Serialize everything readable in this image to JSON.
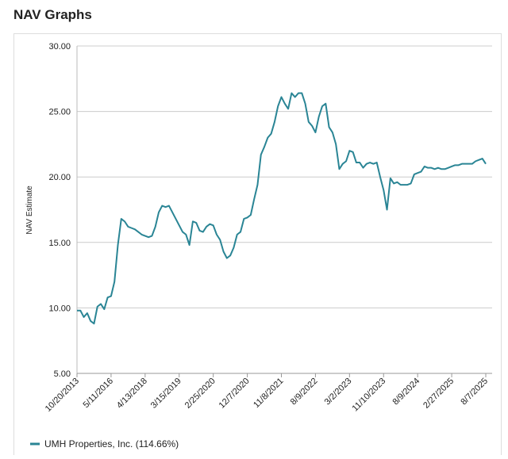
{
  "chart_data": {
    "type": "line",
    "title": "NAV Graphs",
    "ylabel": "NAV Estimate",
    "categories": [
      "10/20/2013",
      null,
      null,
      null,
      null,
      null,
      null,
      null,
      null,
      null,
      "5/11/2016",
      null,
      null,
      null,
      null,
      null,
      null,
      null,
      null,
      null,
      "4/13/2018",
      null,
      null,
      null,
      null,
      null,
      null,
      null,
      null,
      null,
      "3/15/2019",
      null,
      null,
      null,
      null,
      null,
      null,
      null,
      null,
      null,
      "2/25/2020",
      null,
      null,
      null,
      null,
      null,
      null,
      null,
      null,
      null,
      "12/7/2020",
      null,
      null,
      null,
      null,
      null,
      null,
      null,
      null,
      null,
      "11/8/2021",
      null,
      null,
      null,
      null,
      null,
      null,
      null,
      null,
      null,
      "8/9/2022",
      null,
      null,
      null,
      null,
      null,
      null,
      null,
      null,
      null,
      "3/2/2023",
      null,
      null,
      null,
      null,
      null,
      null,
      null,
      null,
      null,
      "11/10/2023",
      null,
      null,
      null,
      null,
      null,
      null,
      null,
      null,
      null,
      "8/9/2024",
      null,
      null,
      null,
      null,
      null,
      null,
      null,
      null,
      null,
      "2/27/2025",
      null,
      null,
      null,
      null,
      null,
      null,
      null,
      null,
      null,
      "8/7/2025"
    ],
    "series": [
      {
        "name": "UMH Properties, Inc. (114.66%)",
        "color": "#2a8595",
        "values": [
          9.8,
          9.8,
          9.3,
          9.6,
          9.0,
          8.8,
          10.1,
          10.3,
          9.9,
          10.8,
          10.9,
          12.0,
          14.8,
          16.8,
          16.6,
          16.2,
          16.1,
          16.0,
          15.8,
          15.6,
          15.5,
          15.4,
          15.5,
          16.2,
          17.3,
          17.8,
          17.7,
          17.8,
          17.3,
          16.8,
          16.3,
          15.8,
          15.6,
          14.8,
          16.6,
          16.5,
          15.9,
          15.8,
          16.2,
          16.4,
          16.3,
          15.6,
          15.2,
          14.3,
          13.8,
          14.0,
          14.6,
          15.6,
          15.8,
          16.8,
          16.9,
          17.1,
          18.3,
          19.4,
          21.7,
          22.3,
          23.0,
          23.3,
          24.2,
          25.4,
          26.1,
          25.6,
          25.2,
          26.4,
          26.1,
          26.4,
          26.4,
          25.6,
          24.2,
          23.9,
          23.4,
          24.6,
          25.4,
          25.6,
          23.8,
          23.4,
          22.5,
          20.6,
          21.0,
          21.2,
          22.0,
          21.9,
          21.1,
          21.1,
          20.7,
          21.0,
          21.1,
          21.0,
          21.1,
          20.0,
          19.0,
          17.5,
          19.9,
          19.5,
          19.6,
          19.4,
          19.4,
          19.4,
          19.5,
          20.2,
          20.3,
          20.4,
          20.8,
          20.7,
          20.7,
          20.6,
          20.7,
          20.6,
          20.6,
          20.7,
          20.8,
          20.9,
          20.9,
          21.0,
          21.0,
          21.0,
          21.0,
          21.2,
          21.3,
          21.4,
          21.0
        ]
      }
    ],
    "ylim": [
      5,
      30
    ],
    "yticks": [
      {
        "value": 5,
        "label": "5.00"
      },
      {
        "value": 10,
        "label": "10.00"
      },
      {
        "value": 15,
        "label": "15.00"
      },
      {
        "value": 20,
        "label": "20.00"
      },
      {
        "value": 25,
        "label": "25.00"
      },
      {
        "value": 30,
        "label": "30.00"
      }
    ],
    "grid": true
  }
}
